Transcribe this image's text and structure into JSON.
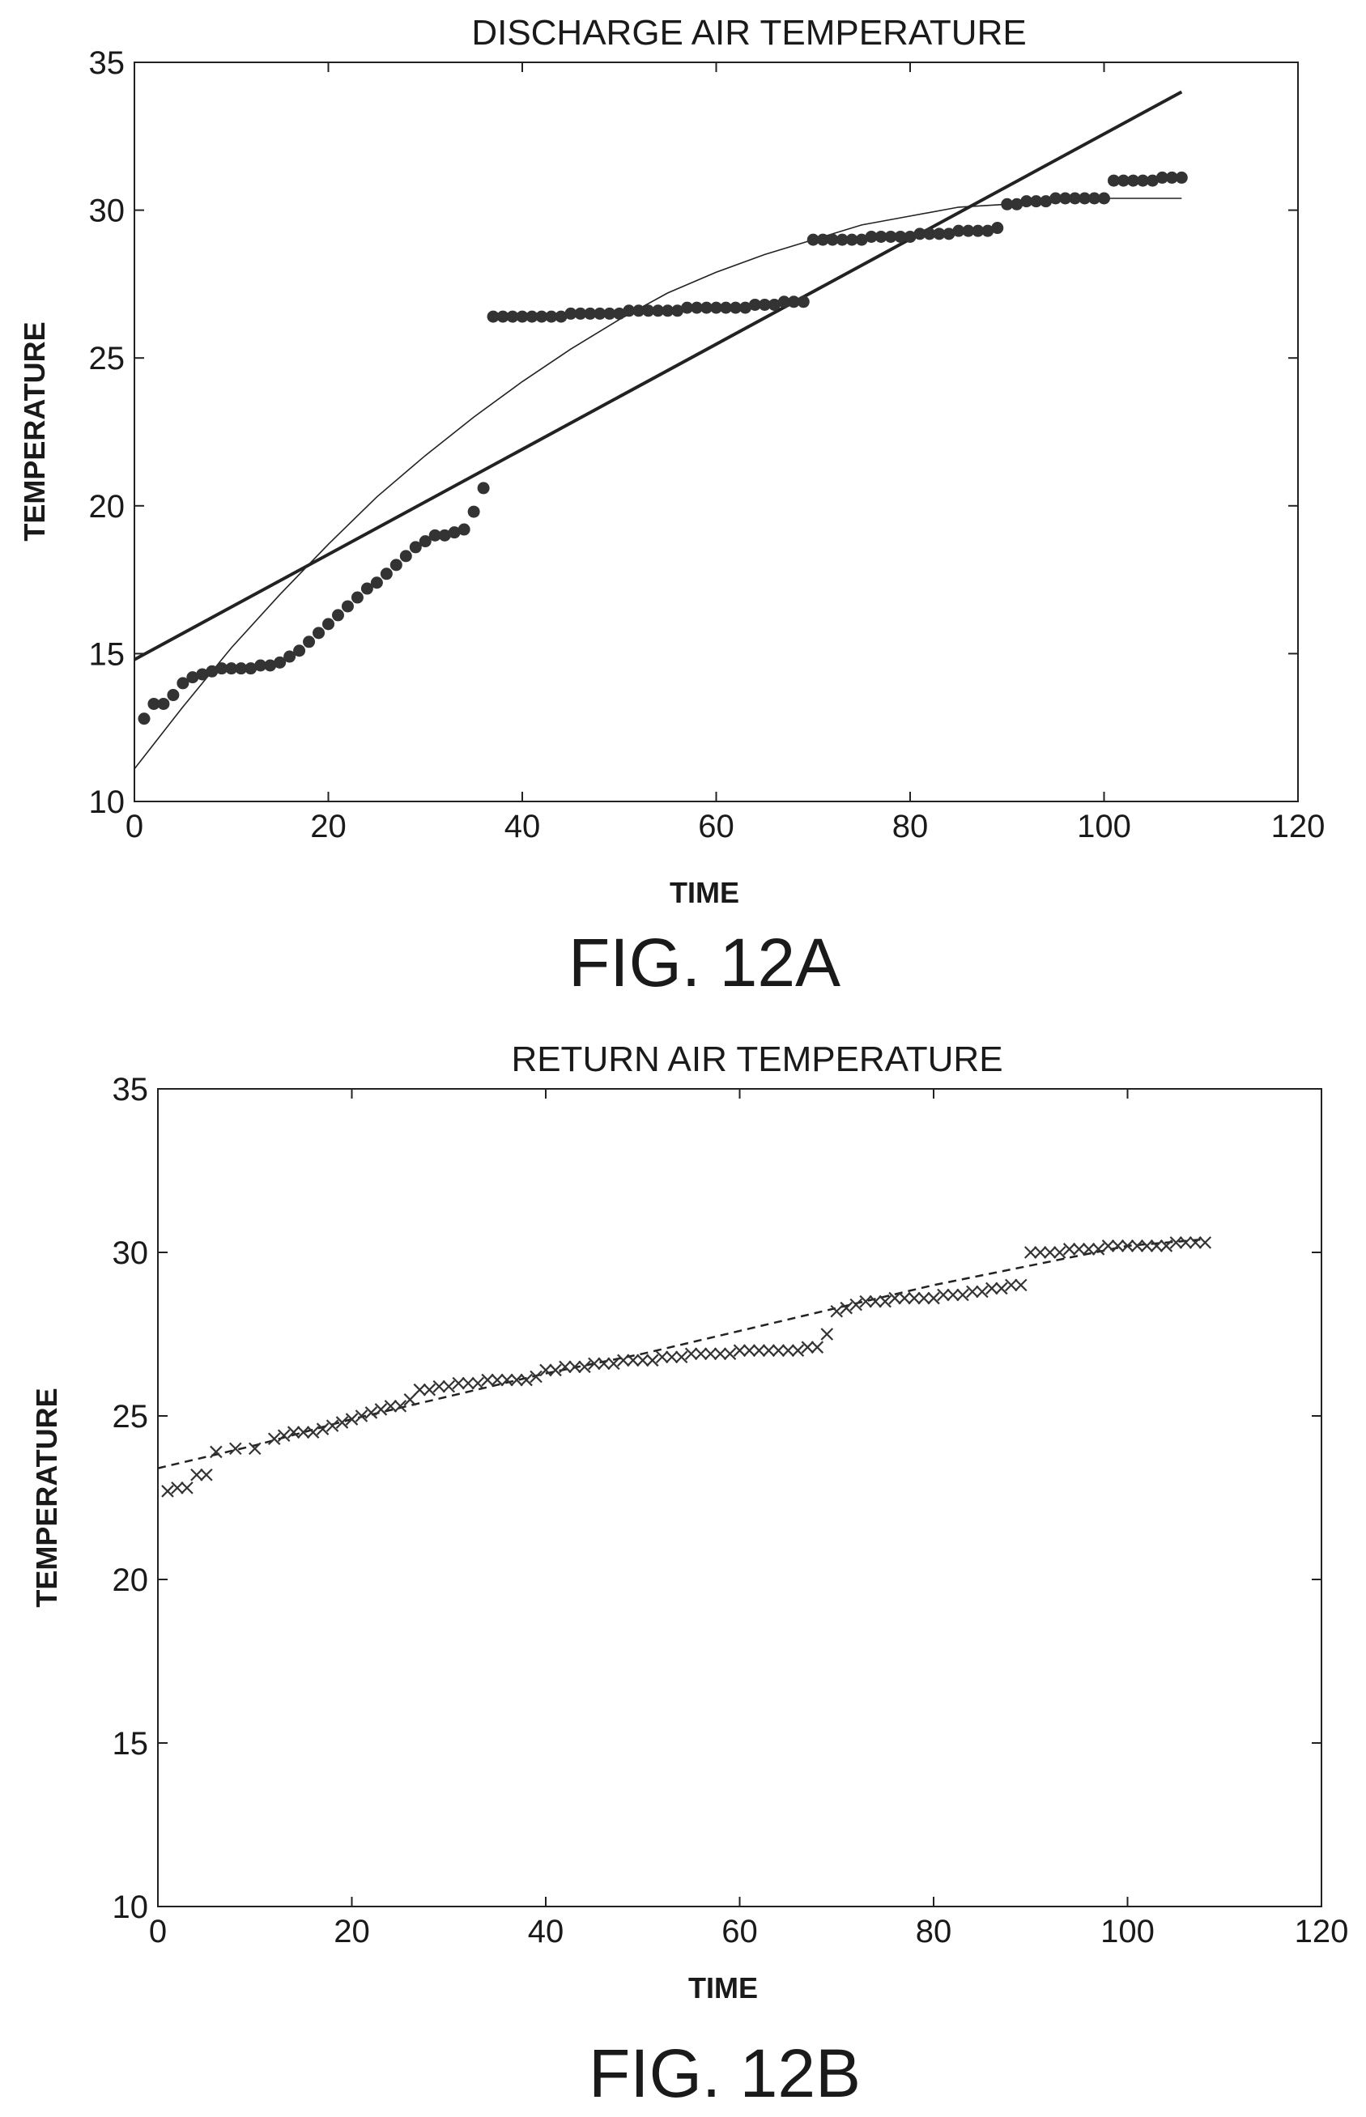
{
  "figures": [
    {
      "label": "FIG. 12A"
    },
    {
      "label": "FIG. 12B"
    }
  ],
  "chart_data": [
    {
      "type": "scatter",
      "title": "DISCHARGE AIR TEMPERATURE",
      "xlabel": "TIME",
      "ylabel": "TEMPERATURE",
      "xlim": [
        0,
        120
      ],
      "ylim": [
        10,
        35
      ],
      "xticks": [
        0,
        20,
        40,
        60,
        80,
        100,
        120
      ],
      "yticks": [
        10,
        15,
        20,
        25,
        30,
        35
      ],
      "grid": false,
      "legend": "none",
      "series": [
        {
          "kind": "scatter",
          "marker": "filled-circle",
          "color": "#333333",
          "x": [
            1,
            2,
            3,
            4,
            5,
            6,
            7,
            8,
            9,
            10,
            11,
            12,
            13,
            14,
            15,
            16,
            17,
            18,
            19,
            20,
            21,
            22,
            23,
            24,
            25,
            26,
            27,
            28,
            29,
            30,
            31,
            32,
            33,
            34,
            35,
            36,
            37,
            38,
            39,
            40,
            41,
            42,
            43,
            44,
            45,
            46,
            47,
            48,
            49,
            50,
            51,
            52,
            53,
            54,
            55,
            56,
            57,
            58,
            59,
            60,
            61,
            62,
            63,
            64,
            65,
            66,
            67,
            68,
            69,
            70,
            71,
            72,
            73,
            74,
            75,
            76,
            77,
            78,
            79,
            80,
            81,
            82,
            83,
            84,
            85,
            86,
            87,
            88,
            89,
            90,
            91,
            92,
            93,
            94,
            95,
            96,
            97,
            98,
            99,
            100,
            101,
            102,
            103,
            104,
            105,
            106,
            107,
            108
          ],
          "y": [
            12.8,
            13.3,
            13.3,
            13.6,
            14.0,
            14.2,
            14.3,
            14.4,
            14.5,
            14.5,
            14.5,
            14.5,
            14.6,
            14.6,
            14.7,
            14.9,
            15.1,
            15.4,
            15.7,
            16.0,
            16.3,
            16.6,
            16.9,
            17.2,
            17.4,
            17.7,
            18.0,
            18.3,
            18.6,
            18.8,
            19.0,
            19.0,
            19.1,
            19.2,
            19.8,
            20.6,
            26.4,
            26.4,
            26.4,
            26.4,
            26.4,
            26.4,
            26.4,
            26.4,
            26.5,
            26.5,
            26.5,
            26.5,
            26.5,
            26.5,
            26.6,
            26.6,
            26.6,
            26.6,
            26.6,
            26.6,
            26.7,
            26.7,
            26.7,
            26.7,
            26.7,
            26.7,
            26.7,
            26.8,
            26.8,
            26.8,
            26.9,
            26.9,
            26.9,
            29.0,
            29.0,
            29.0,
            29.0,
            29.0,
            29.0,
            29.1,
            29.1,
            29.1,
            29.1,
            29.1,
            29.2,
            29.2,
            29.2,
            29.2,
            29.3,
            29.3,
            29.3,
            29.3,
            29.4,
            30.2,
            30.2,
            30.3,
            30.3,
            30.3,
            30.4,
            30.4,
            30.4,
            30.4,
            30.4,
            30.4,
            31.0,
            31.0,
            31.0,
            31.0,
            31.0,
            31.1,
            31.1,
            31.1
          ]
        },
        {
          "kind": "line",
          "style": "solid-thick",
          "color": "#222222",
          "x": [
            0,
            108
          ],
          "y": [
            14.8,
            34.0
          ]
        },
        {
          "kind": "line",
          "style": "solid-thin",
          "color": "#222222",
          "x": [
            0,
            5,
            10,
            15,
            20,
            25,
            30,
            35,
            40,
            45,
            50,
            55,
            60,
            65,
            70,
            75,
            80,
            85,
            90,
            95,
            100,
            105,
            108
          ],
          "y": [
            11.1,
            13.2,
            15.2,
            17.0,
            18.7,
            20.3,
            21.7,
            23.0,
            24.2,
            25.3,
            26.3,
            27.2,
            27.9,
            28.5,
            29.0,
            29.5,
            29.8,
            30.1,
            30.2,
            30.3,
            30.4,
            30.4,
            30.4
          ]
        }
      ]
    },
    {
      "type": "scatter",
      "title": "RETURN AIR TEMPERATURE",
      "xlabel": "TIME",
      "ylabel": "TEMPERATURE",
      "xlim": [
        0,
        120
      ],
      "ylim": [
        10,
        35
      ],
      "xticks": [
        0,
        20,
        40,
        60,
        80,
        100,
        120
      ],
      "yticks": [
        10,
        15,
        20,
        25,
        30,
        35
      ],
      "grid": false,
      "legend": "none",
      "series": [
        {
          "kind": "scatter",
          "marker": "x",
          "color": "#333333",
          "x": [
            1,
            2,
            3,
            4,
            5,
            6,
            8,
            10,
            12,
            13,
            14,
            15,
            16,
            17,
            18,
            19,
            20,
            21,
            22,
            23,
            24,
            25,
            26,
            27,
            28,
            29,
            30,
            31,
            32,
            33,
            34,
            35,
            36,
            37,
            38,
            39,
            40,
            41,
            42,
            43,
            44,
            45,
            46,
            47,
            48,
            49,
            50,
            51,
            52,
            53,
            54,
            55,
            56,
            57,
            58,
            59,
            60,
            61,
            62,
            63,
            64,
            65,
            66,
            67,
            68,
            69,
            70,
            71,
            72,
            73,
            74,
            75,
            76,
            77,
            78,
            79,
            80,
            81,
            82,
            83,
            84,
            85,
            86,
            87,
            88,
            89,
            90,
            91,
            92,
            93,
            94,
            95,
            96,
            97,
            98,
            99,
            100,
            101,
            102,
            103,
            104,
            105,
            106,
            107,
            108
          ],
          "y": [
            22.7,
            22.8,
            22.8,
            23.2,
            23.2,
            23.9,
            24.0,
            24.0,
            24.3,
            24.4,
            24.5,
            24.5,
            24.5,
            24.6,
            24.7,
            24.8,
            24.9,
            25.0,
            25.1,
            25.2,
            25.3,
            25.3,
            25.5,
            25.8,
            25.8,
            25.9,
            25.9,
            26.0,
            26.0,
            26.0,
            26.1,
            26.1,
            26.1,
            26.1,
            26.1,
            26.2,
            26.4,
            26.4,
            26.5,
            26.5,
            26.5,
            26.6,
            26.6,
            26.6,
            26.7,
            26.7,
            26.7,
            26.7,
            26.8,
            26.8,
            26.8,
            26.9,
            26.9,
            26.9,
            26.9,
            26.9,
            27.0,
            27.0,
            27.0,
            27.0,
            27.0,
            27.0,
            27.0,
            27.1,
            27.1,
            27.5,
            28.2,
            28.3,
            28.4,
            28.5,
            28.5,
            28.5,
            28.6,
            28.6,
            28.6,
            28.6,
            28.6,
            28.7,
            28.7,
            28.7,
            28.8,
            28.8,
            28.9,
            28.9,
            29.0,
            29.0,
            30.0,
            30.0,
            30.0,
            30.0,
            30.1,
            30.1,
            30.1,
            30.1,
            30.2,
            30.2,
            30.2,
            30.2,
            30.2,
            30.2,
            30.2,
            30.3,
            30.3,
            30.3,
            30.3
          ]
        },
        {
          "kind": "line",
          "style": "dashed",
          "color": "#222222",
          "x": [
            0,
            10,
            20,
            30,
            40,
            50,
            60,
            70,
            80,
            90,
            100,
            108
          ],
          "y": [
            23.4,
            24.1,
            24.9,
            25.6,
            26.3,
            26.9,
            27.6,
            28.3,
            29.0,
            29.6,
            30.2,
            30.4
          ]
        }
      ]
    }
  ]
}
